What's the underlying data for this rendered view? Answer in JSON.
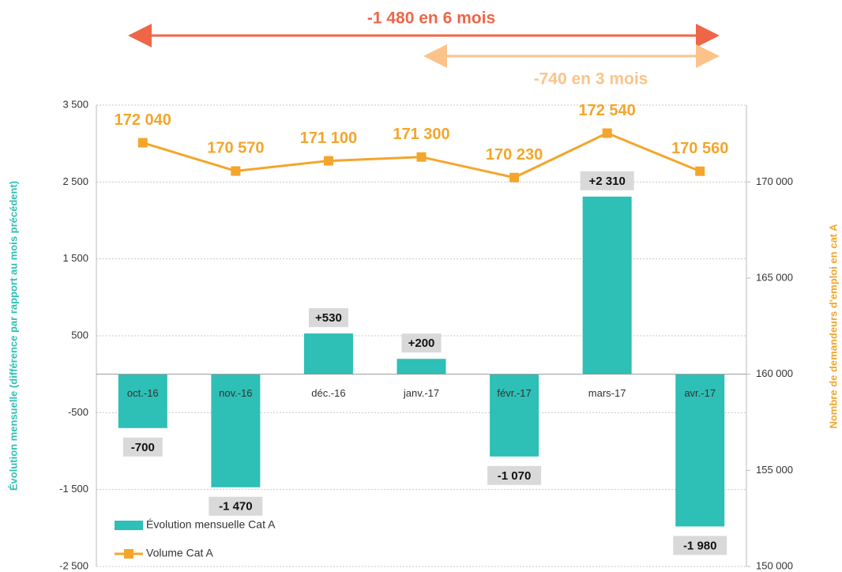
{
  "chart_data": {
    "type": "bar",
    "annotations": [
      {
        "text": "-1 480 en 6 mois",
        "color": "#ef6548"
      },
      {
        "text": "-740 en 3 mois",
        "color": "#fbc38a"
      }
    ],
    "ylabel": "Évolution mensuelle (différence par rapport au mois précédent)",
    "y2label": "Nombre de demandeurs d'emploi en cat A",
    "categories": [
      "oct.-16",
      "nov.-16",
      "déc.-16",
      "janv.-17",
      "févr.-17",
      "mars-17",
      "avr.-17"
    ],
    "series": [
      {
        "name": "Évolution mensuelle Cat A",
        "type": "bar",
        "color": "#2ebfb6",
        "values": [
          -700,
          -1470,
          530,
          200,
          -1070,
          2310,
          -1980
        ],
        "value_labels": [
          "-700",
          "-1 470",
          "+530",
          "+200",
          "-1 070",
          "+2 310",
          "-1 980"
        ]
      },
      {
        "name": "Volume Cat A",
        "type": "line",
        "axis": "y2",
        "color": "#f4a52b",
        "values": [
          172040,
          170570,
          171100,
          171300,
          170230,
          172540,
          170560
        ],
        "value_labels": [
          "172 040",
          "170 570",
          "171 100",
          "171 300",
          "170 230",
          "172 540",
          "170 560"
        ]
      }
    ],
    "ylim": [
      -2500,
      3500
    ],
    "yticks": [
      {
        "value": -2500,
        "label": "-2 500"
      },
      {
        "value": -1500,
        "label": "-1 500"
      },
      -500,
      500,
      {
        "value": 1500,
        "label": "1 500"
      },
      {
        "value": 2500,
        "label": "2 500"
      },
      {
        "value": 3500,
        "label": "3 500"
      }
    ],
    "y2lim": [
      150000,
      174000
    ],
    "y2ticks": [
      {
        "value": 150000,
        "label": "150 000"
      },
      {
        "value": 155000,
        "label": "155 000"
      },
      {
        "value": 160000,
        "label": "160 000"
      },
      {
        "value": 165000,
        "label": "165 000"
      },
      {
        "value": 170000,
        "label": "170 000"
      }
    ],
    "grid": true,
    "legend": "lower left"
  }
}
